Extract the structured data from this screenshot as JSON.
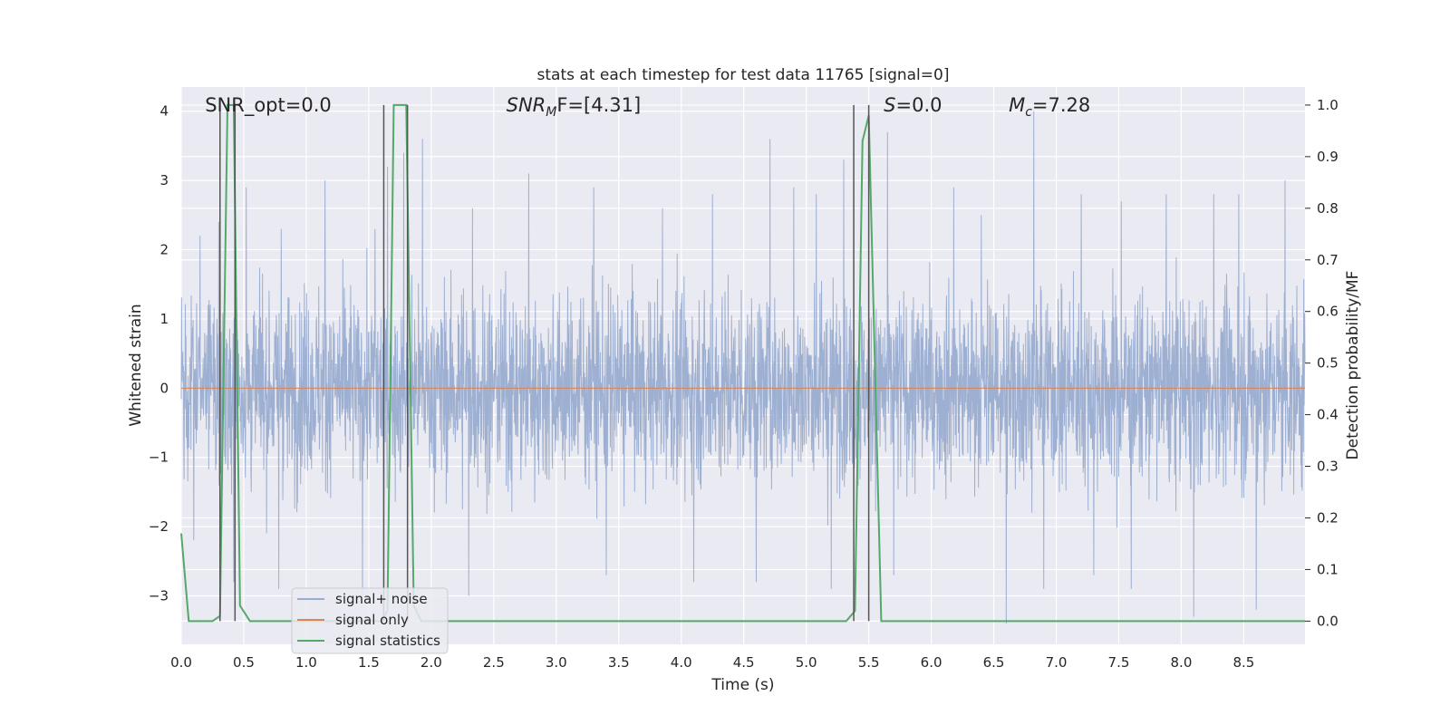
{
  "chart_data": {
    "type": "line",
    "title": "stats at each timestep for test data 11765 [signal=0]",
    "xlabel": "Time (s)",
    "ylabel_left": "Whitened strain",
    "ylabel_right": "Detection probability/MF",
    "xlim": [
      0.0,
      8.99
    ],
    "ylim_left": [
      -3.7,
      4.35
    ],
    "ylim_right": [
      -0.045,
      1.035
    ],
    "x_ticks": [
      "0.0",
      "0.5",
      "1.0",
      "1.5",
      "2.0",
      "2.5",
      "3.0",
      "3.5",
      "4.0",
      "4.5",
      "5.0",
      "5.5",
      "6.0",
      "6.5",
      "7.0",
      "7.5",
      "8.0",
      "8.5"
    ],
    "y_ticks_left": [
      "4",
      "3",
      "2",
      "1",
      "0",
      "−1",
      "−2",
      "−3"
    ],
    "y_ticks_right": [
      "1.0",
      "0.9",
      "0.8",
      "0.7",
      "0.6",
      "0.5",
      "0.4",
      "0.3",
      "0.2",
      "0.1",
      "0.0"
    ],
    "grid": true,
    "legend_position": "lower-left",
    "annotations": [
      {
        "id": "snr-opt",
        "plain": "SNR_opt=0.0",
        "x": 0.19
      },
      {
        "id": "snr-mf",
        "sym": "SNR",
        "sub": "M",
        "rest": "F=[4.31]",
        "x": 2.6
      },
      {
        "id": "s-val",
        "sym": "S",
        "sub": "",
        "rest": "=0.0",
        "x": 5.62
      },
      {
        "id": "mc-val",
        "sym": "M",
        "sub": "c",
        "rest": "=7.28",
        "x": 6.62
      }
    ],
    "series": [
      {
        "name": "signal+ noise",
        "color": "#9aadd0",
        "kind": "noise",
        "sample_rate_hz": 400,
        "envelope_note": "dense whitened noise between about -3.4 and 3.8",
        "peaks": [
          [
            0.15,
            2.2
          ],
          [
            0.3,
            2.4
          ],
          [
            0.42,
            3.8
          ],
          [
            0.52,
            2.9
          ],
          [
            0.8,
            2.3
          ],
          [
            1.15,
            3.0
          ],
          [
            1.55,
            2.3
          ],
          [
            1.65,
            3.2
          ],
          [
            1.78,
            3.4
          ],
          [
            1.93,
            3.6
          ],
          [
            2.33,
            2.6
          ],
          [
            2.78,
            3.1
          ],
          [
            3.3,
            2.9
          ],
          [
            3.85,
            2.6
          ],
          [
            4.25,
            2.8
          ],
          [
            4.71,
            3.6
          ],
          [
            4.9,
            2.9
          ],
          [
            5.08,
            2.8
          ],
          [
            5.3,
            3.3
          ],
          [
            5.65,
            3.7
          ],
          [
            6.18,
            2.9
          ],
          [
            6.4,
            2.5
          ],
          [
            6.82,
            4.0
          ],
          [
            7.2,
            2.8
          ],
          [
            7.52,
            2.7
          ],
          [
            7.88,
            2.8
          ],
          [
            8.26,
            2.8
          ],
          [
            8.46,
            2.8
          ],
          [
            8.83,
            3.0
          ]
        ],
        "troughs": [
          [
            0.1,
            -2.2
          ],
          [
            0.42,
            -2.8
          ],
          [
            0.78,
            -2.9
          ],
          [
            1.45,
            -3.0
          ],
          [
            1.62,
            -3.1
          ],
          [
            2.3,
            -3.0
          ],
          [
            3.4,
            -2.7
          ],
          [
            4.1,
            -2.8
          ],
          [
            4.6,
            -2.8
          ],
          [
            5.2,
            -2.9
          ],
          [
            5.7,
            -2.7
          ],
          [
            6.6,
            -3.4
          ],
          [
            6.9,
            -2.9
          ],
          [
            7.3,
            -2.7
          ],
          [
            7.6,
            -2.9
          ],
          [
            8.1,
            -3.3
          ],
          [
            8.6,
            -3.2
          ]
        ]
      },
      {
        "name": "signal only",
        "color": "#dd8452",
        "kind": "line",
        "axis": "left",
        "x": [
          0.0,
          8.99
        ],
        "y": [
          0.0,
          0.0
        ]
      },
      {
        "name": "signal statistics",
        "color": "#55a868",
        "kind": "line",
        "axis": "right",
        "x": [
          0.0,
          0.06,
          0.12,
          0.25,
          0.31,
          0.37,
          0.42,
          0.47,
          0.55,
          1.6,
          1.65,
          1.7,
          1.8,
          1.86,
          1.92,
          5.32,
          5.39,
          5.45,
          5.5,
          5.6,
          8.99
        ],
        "y": [
          0.17,
          0.0,
          0.0,
          0.0,
          0.01,
          1.0,
          1.0,
          0.03,
          0.0,
          0.0,
          0.02,
          1.0,
          1.0,
          0.03,
          0.0,
          0.0,
          0.02,
          0.93,
          0.98,
          0.0,
          0.0
        ]
      }
    ],
    "vertical_markers": [
      0.31,
      0.43,
      1.62,
      1.81,
      5.38,
      5.5
    ]
  }
}
